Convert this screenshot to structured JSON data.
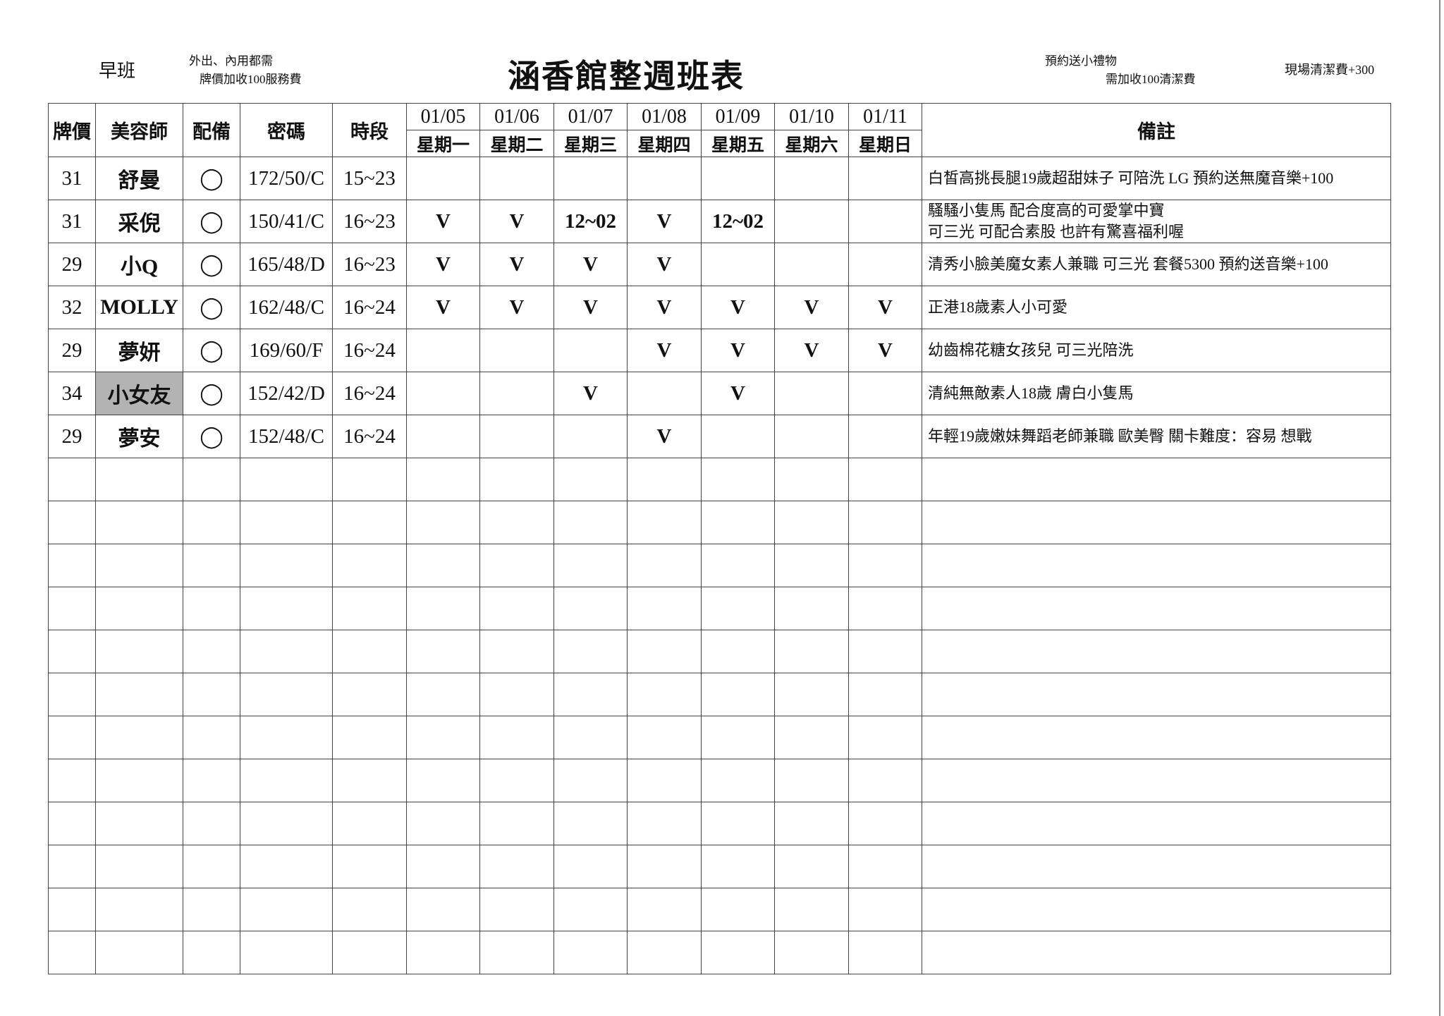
{
  "header": {
    "shift": "早班",
    "note_left": [
      "外出、內用都需",
      "牌價加收100服務費"
    ],
    "title": "涵香館整週班表",
    "note_mid": [
      "預約送小禮物",
      "需加收100清潔費"
    ],
    "note_right": "現場清潔費+300"
  },
  "columns": {
    "price": "牌價",
    "staff": "美容師",
    "equip": "配備",
    "password": "密碼",
    "time": "時段",
    "dates": [
      "01/05",
      "01/06",
      "01/07",
      "01/08",
      "01/09",
      "01/10",
      "01/11"
    ],
    "weekdays": [
      "星期一",
      "星期二",
      "星期三",
      "星期四",
      "星期五",
      "星期六",
      "星期日"
    ],
    "notes": "備註"
  },
  "highlight_color": "#b3b3b3",
  "rows": [
    {
      "price": "31",
      "name": "舒曼",
      "equip": "◯",
      "password": "172/50/C",
      "time": "15~23",
      "days": [
        "",
        "",
        "",
        "",
        "",
        "",
        ""
      ],
      "notes": [
        "白皙高挑長腿19歲超甜妹子 可陪洗 LG 預約送無魔音樂+100"
      ],
      "highlight": false
    },
    {
      "price": "31",
      "name": "采倪",
      "equip": "◯",
      "password": "150/41/C",
      "time": "16~23",
      "days": [
        "V",
        "V",
        "12~02",
        "V",
        "12~02",
        "",
        ""
      ],
      "notes": [
        "騷騷小隻馬 配合度高的可愛掌中寶",
        "可三光 可配合素股 也許有驚喜福利喔"
      ],
      "highlight": false
    },
    {
      "price": "29",
      "name": "小Q",
      "equip": "◯",
      "password": "165/48/D",
      "time": "16~23",
      "days": [
        "V",
        "V",
        "V",
        "V",
        "",
        "",
        ""
      ],
      "notes": [
        "清秀小臉美魔女素人兼職 可三光 套餐5300 預約送音樂+100"
      ],
      "highlight": false
    },
    {
      "price": "32",
      "name": "MOLLY",
      "equip": "◯",
      "password": "162/48/C",
      "time": "16~24",
      "days": [
        "V",
        "V",
        "V",
        "V",
        "V",
        "V",
        "V"
      ],
      "notes": [
        "正港18歲素人小可愛"
      ],
      "highlight": false
    },
    {
      "price": "29",
      "name": "夢妍",
      "equip": "◯",
      "password": "169/60/F",
      "time": "16~24",
      "days": [
        "",
        "",
        "",
        "V",
        "V",
        "V",
        "V"
      ],
      "notes": [
        "幼齒棉花糖女孩兒 可三光陪洗"
      ],
      "highlight": false
    },
    {
      "price": "34",
      "name": "小女友",
      "equip": "◯",
      "password": "152/42/D",
      "time": "16~24",
      "days": [
        "",
        "",
        "V",
        "",
        "V",
        "",
        ""
      ],
      "notes": [
        "清純無敵素人18歲 膚白小隻馬"
      ],
      "highlight": true
    },
    {
      "price": "29",
      "name": "夢安",
      "equip": "◯",
      "password": "152/48/C",
      "time": "16~24",
      "days": [
        "",
        "",
        "",
        "V",
        "",
        "",
        ""
      ],
      "notes": [
        "年輕19歲嫩妹舞蹈老師兼職 歐美臀 關卡難度：容易 想戰"
      ],
      "highlight": false
    }
  ],
  "empty_rows": 12
}
